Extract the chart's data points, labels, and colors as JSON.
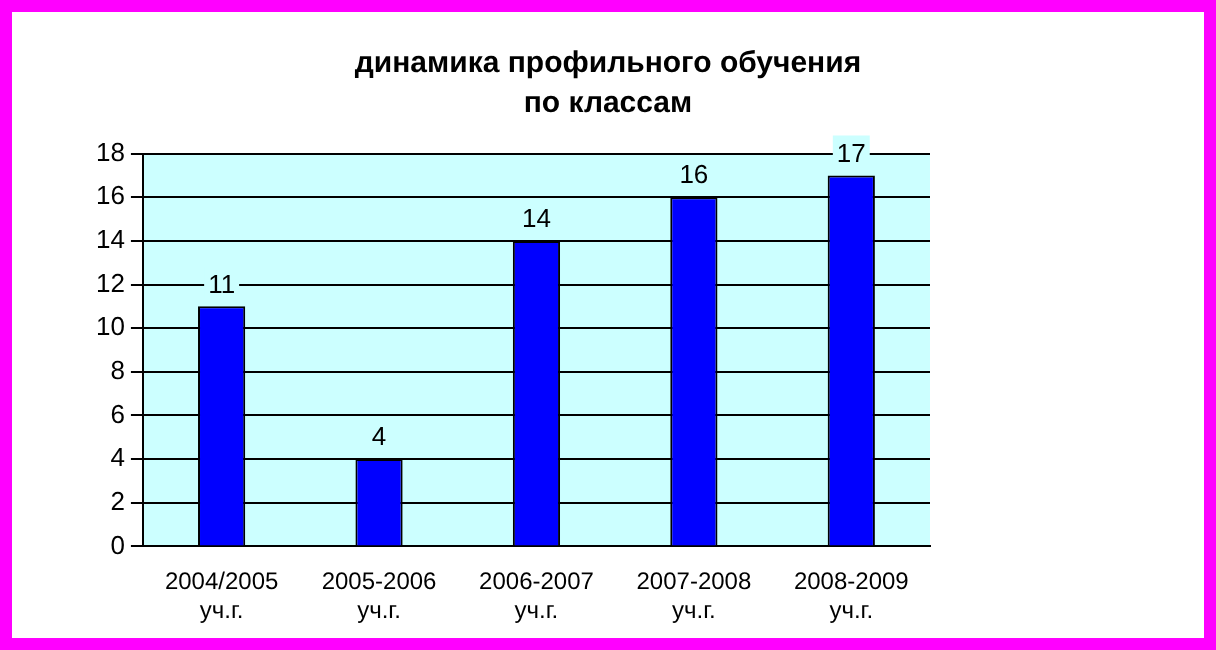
{
  "chart_data": {
    "type": "bar",
    "title": "динамика профильного обучения по классам",
    "categories": [
      "2004/2005 уч.г.",
      "2005-2006 уч.г.",
      "2006-2007 уч.г.",
      "2007-2008 уч.г.",
      "2008-2009 уч.г."
    ],
    "values": [
      11,
      4,
      14,
      16,
      17
    ],
    "color": "#0000ff",
    "ylim": [
      0,
      18
    ],
    "yticks": [
      0,
      2,
      4,
      6,
      8,
      10,
      12,
      14,
      16,
      18
    ],
    "grid": "y",
    "legend": false,
    "data_labels": true
  }
}
